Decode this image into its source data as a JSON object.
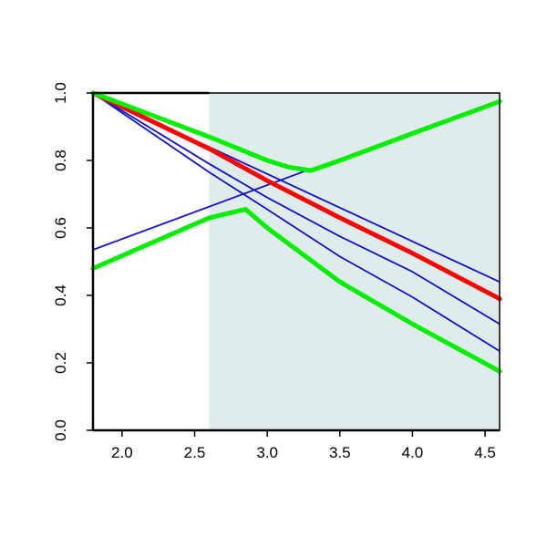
{
  "chart_data": {
    "type": "line",
    "title": "",
    "xlabel": "",
    "ylabel": "",
    "xlim": [
      1.8,
      4.6
    ],
    "ylim": [
      0.0,
      1.0
    ],
    "x_ticks": [
      2.0,
      2.5,
      3.0,
      3.5,
      4.0,
      4.5
    ],
    "x_tick_labels": [
      "2.0",
      "2.5",
      "3.0",
      "3.5",
      "4.0",
      "4.5"
    ],
    "y_ticks": [
      0.0,
      0.2,
      0.4,
      0.6,
      0.8,
      1.0
    ],
    "y_tick_labels": [
      "0.0",
      "0.2",
      "0.4",
      "0.6",
      "0.8",
      "1.0"
    ],
    "grid": false,
    "legend": "none",
    "shaded_region": {
      "x_start": 2.6,
      "x_end": 4.6,
      "color": "#dfeceb"
    },
    "series": [
      {
        "color": "#1010c8",
        "points": [
          [
            1.8,
            1.0
          ],
          [
            4.6,
            0.44
          ]
        ]
      },
      {
        "color": "#1010c8",
        "points": [
          [
            1.8,
            1.0
          ],
          [
            2.6,
            0.79
          ],
          [
            3.0,
            0.69
          ],
          [
            3.5,
            0.575
          ],
          [
            4.0,
            0.47
          ],
          [
            4.6,
            0.315
          ]
        ]
      },
      {
        "color": "#1010c8",
        "points": [
          [
            1.8,
            1.0
          ],
          [
            2.6,
            0.765
          ],
          [
            3.0,
            0.655
          ],
          [
            3.5,
            0.515
          ],
          [
            4.0,
            0.395
          ],
          [
            4.6,
            0.235
          ]
        ]
      },
      {
        "color": "#1010c8",
        "points": [
          [
            1.8,
            0.535
          ],
          [
            3.3,
            0.775
          ]
        ]
      },
      {
        "color": "#ff0000",
        "points": [
          [
            1.8,
            1.0
          ],
          [
            2.6,
            0.835
          ],
          [
            3.0,
            0.74
          ],
          [
            3.5,
            0.63
          ],
          [
            4.0,
            0.525
          ],
          [
            4.6,
            0.39
          ]
        ]
      },
      {
        "color": "#00ee00",
        "points": [
          [
            1.8,
            1.0
          ],
          [
            2.6,
            0.87
          ],
          [
            3.0,
            0.8
          ],
          [
            3.15,
            0.78
          ],
          [
            3.3,
            0.77
          ],
          [
            3.5,
            0.8
          ],
          [
            4.0,
            0.88
          ],
          [
            4.6,
            0.975
          ]
        ]
      },
      {
        "color": "#00ee00",
        "points": [
          [
            1.8,
            0.48
          ],
          [
            2.6,
            0.63
          ],
          [
            2.7,
            0.64
          ],
          [
            2.85,
            0.655
          ],
          [
            3.0,
            0.6
          ],
          [
            3.5,
            0.44
          ],
          [
            4.0,
            0.315
          ],
          [
            4.6,
            0.175
          ]
        ]
      }
    ]
  }
}
